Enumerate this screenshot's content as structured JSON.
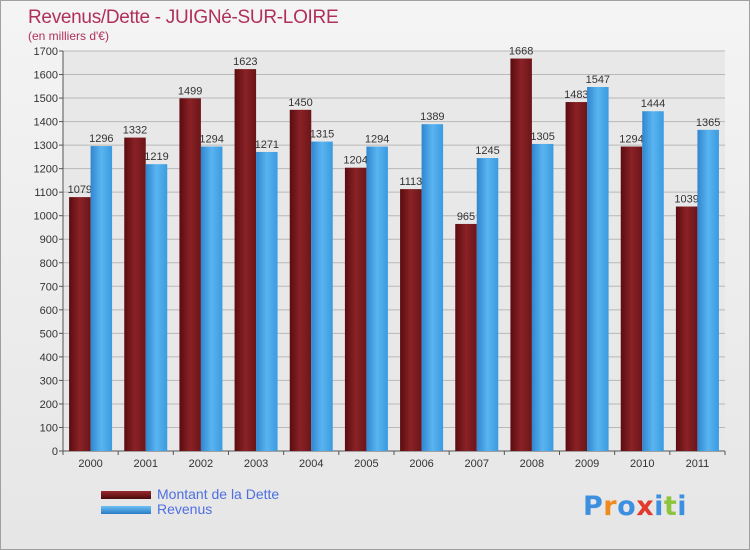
{
  "header": {
    "title": "Revenus/Dette - JUIGNé-SUR-LOIRE",
    "subtitle": "(en milliers d'€)"
  },
  "legend": {
    "debt_label": "Montant de la Dette",
    "revenue_label": "Revenus"
  },
  "logo": {
    "text": "Proxiti",
    "letter_colors": [
      "#3d8fe0",
      "#f08a1f",
      "#3d8fe0",
      "#e23a2e",
      "#3d8fe0",
      "#8cc63f",
      "#3d8fe0"
    ]
  },
  "colors": {
    "debt": "#6b1518",
    "revenue": "#3a9be0",
    "grid": "#b8b8b8",
    "title": "#b0305a"
  },
  "chart_data": {
    "type": "bar",
    "categories": [
      "2000",
      "2001",
      "2002",
      "2003",
      "2004",
      "2005",
      "2006",
      "2007",
      "2008",
      "2009",
      "2010",
      "2011"
    ],
    "series": [
      {
        "name": "Montant de la Dette",
        "values": [
          1079,
          1332,
          1499,
          1623,
          1450,
          1204,
          1113,
          965,
          1668,
          1483,
          1294,
          1039
        ]
      },
      {
        "name": "Revenus",
        "values": [
          1296,
          1219,
          1294,
          1271,
          1315,
          1294,
          1389,
          1245,
          1305,
          1547,
          1444,
          1365
        ]
      }
    ],
    "ylim": [
      0,
      1700
    ],
    "ytick_step": 100,
    "grid": true,
    "legend_position": "bottom-left"
  }
}
